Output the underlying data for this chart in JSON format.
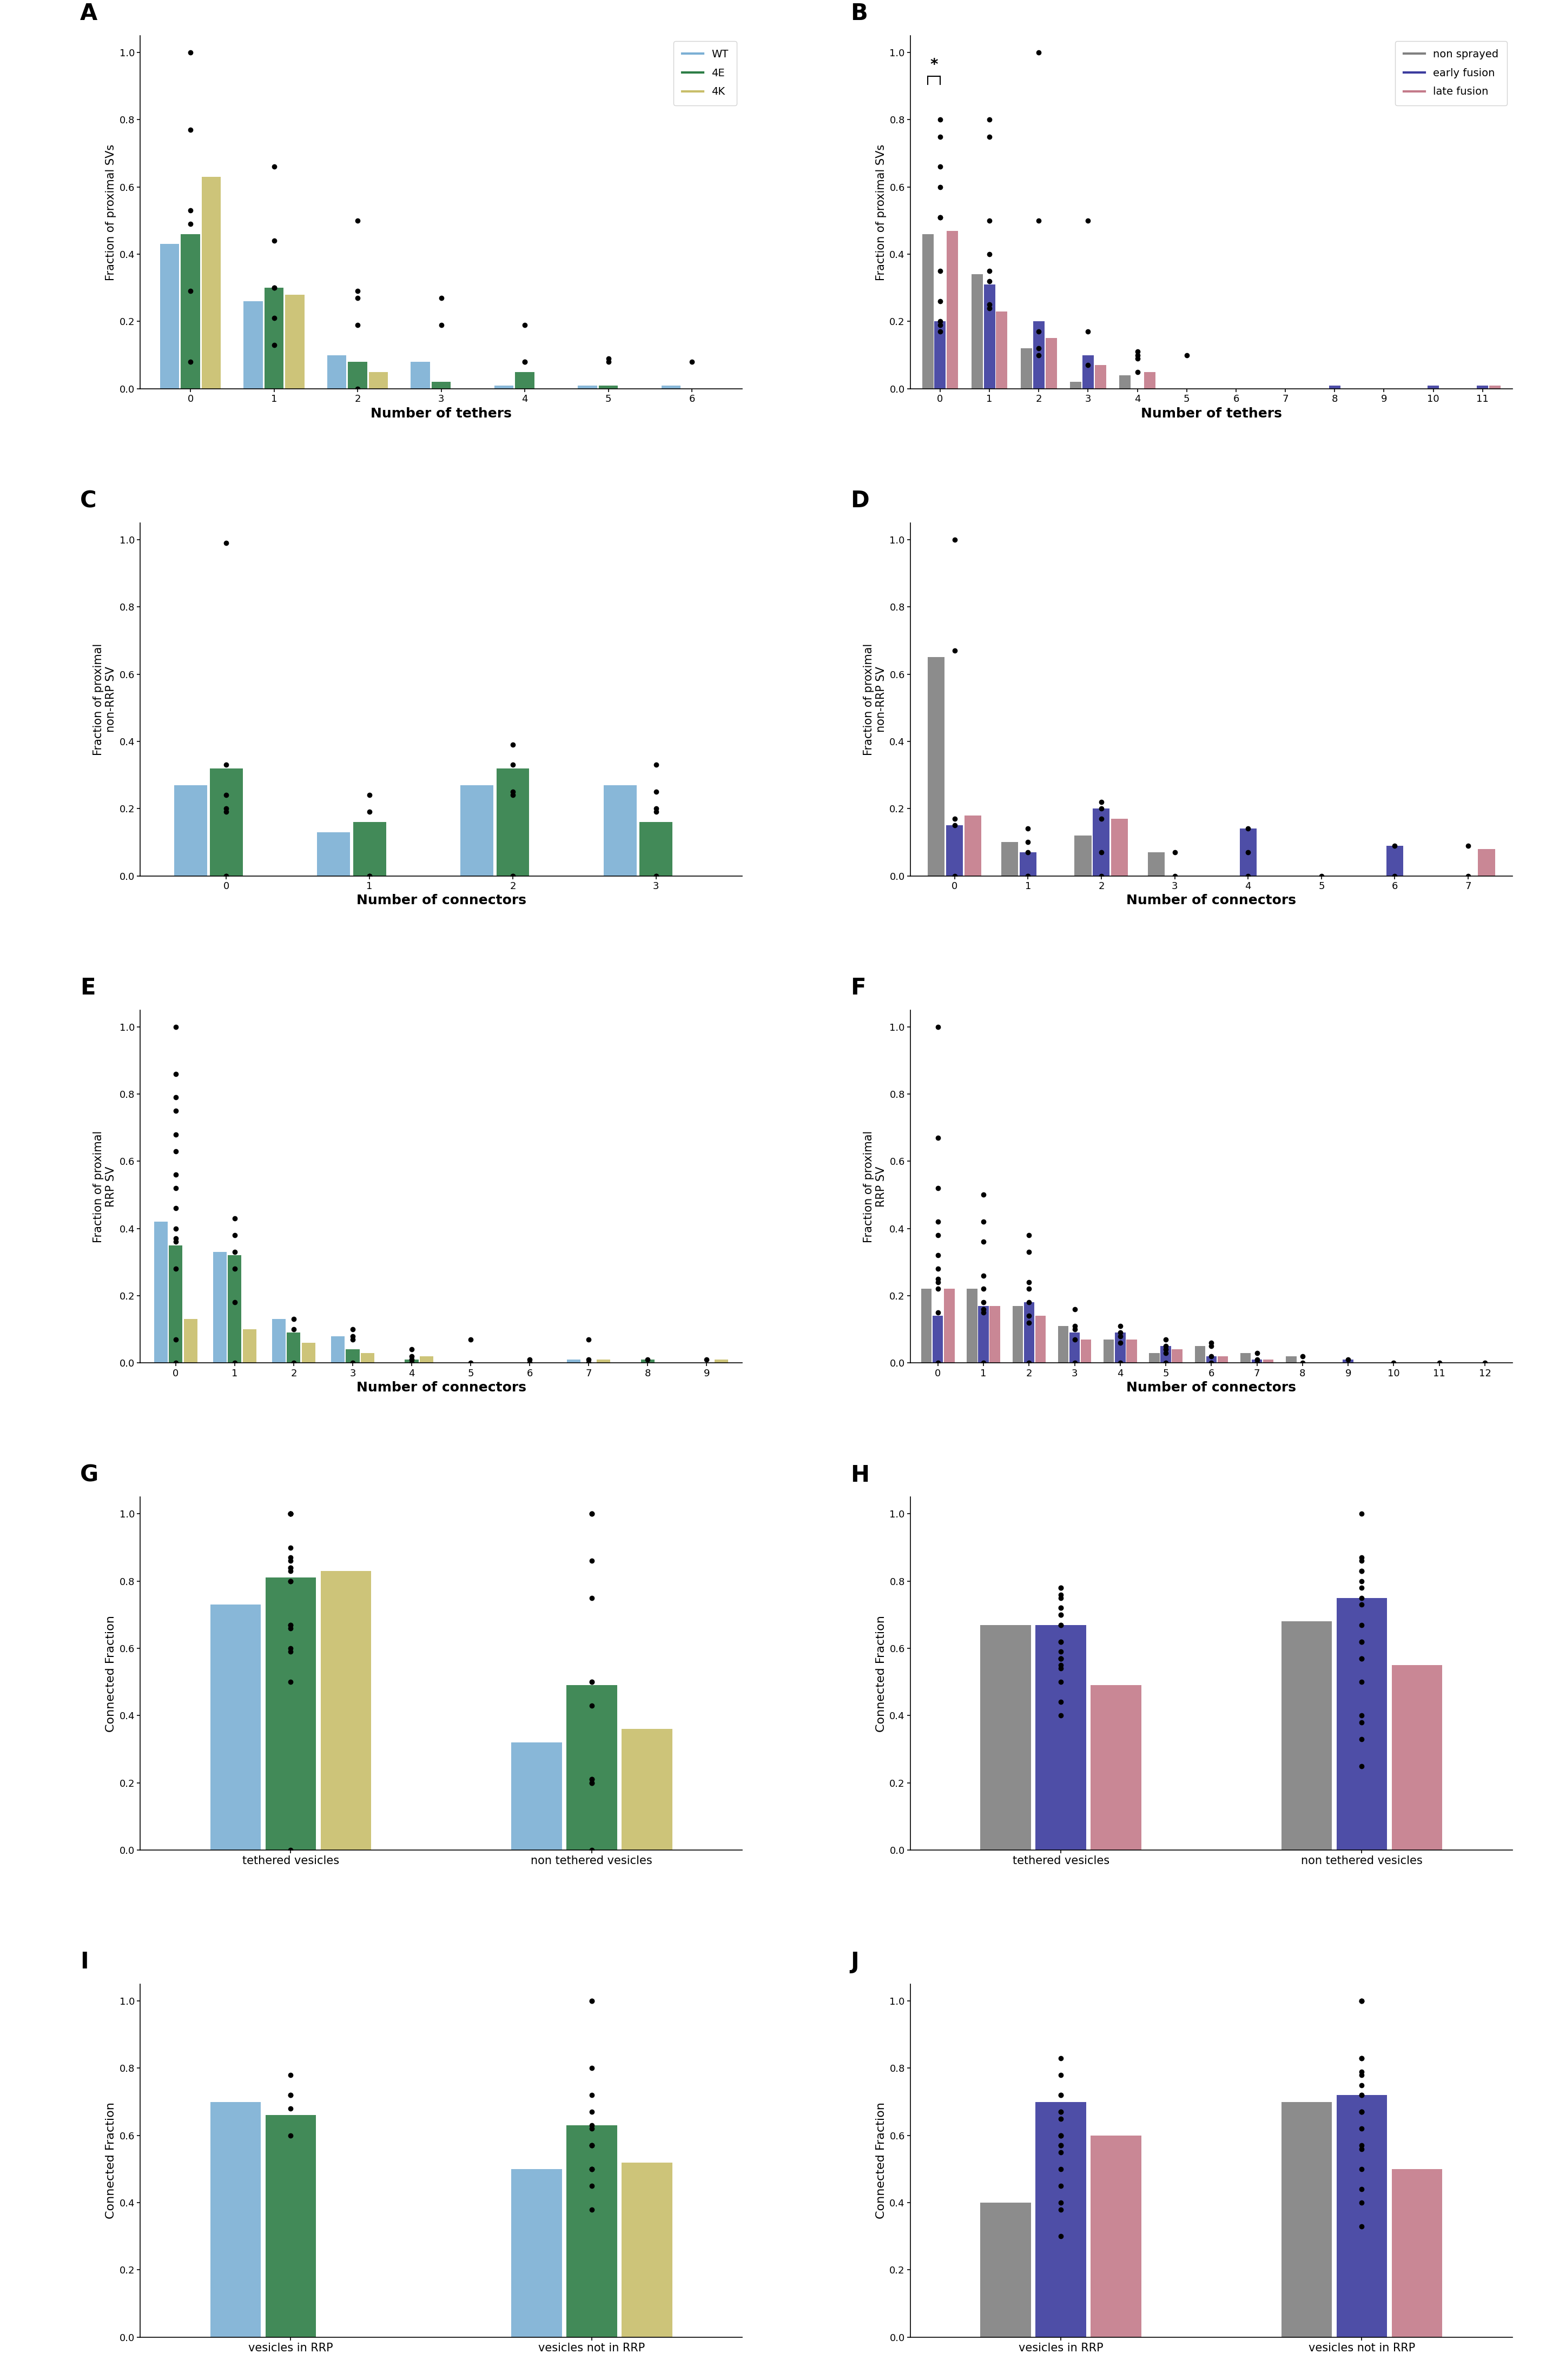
{
  "panel_A": {
    "label": "A",
    "xlabel": "Number of tethers",
    "ylabel": "Fraction of proximal SVs",
    "categories": [
      0,
      1,
      2,
      3,
      4,
      5,
      6
    ],
    "bar_data": {
      "WT": [
        0.43,
        0.26,
        0.1,
        0.08,
        0.01,
        0.01,
        0.01
      ],
      "4E": [
        0.46,
        0.3,
        0.08,
        0.02,
        0.05,
        0.01,
        0.0
      ],
      "4K": [
        0.63,
        0.28,
        0.05,
        0.0,
        0.0,
        0.0,
        0.0
      ]
    },
    "scatter_data": {
      "0": [
        0.08,
        0.29,
        0.49,
        0.53,
        0.77,
        1.0
      ],
      "1": [
        0.13,
        0.21,
        0.3,
        0.3,
        0.44,
        0.66
      ],
      "2": [
        0.0,
        0.19,
        0.27,
        0.29,
        0.5
      ],
      "3": [
        0.19,
        0.27
      ],
      "4": [
        0.08,
        0.08,
        0.19
      ],
      "5": [
        0.08,
        0.09
      ],
      "6": [
        0.08
      ]
    },
    "colors": {
      "WT": "#7bafd4",
      "4E": "#2d7d46",
      "4K": "#c8be6a"
    },
    "legend_keys": [
      "WT",
      "4E",
      "4K"
    ],
    "ylim": [
      0,
      1.05
    ],
    "show_legend": true
  },
  "panel_B": {
    "label": "B",
    "xlabel": "Number of tethers",
    "ylabel": "Fraction of proximal SVs",
    "categories": [
      0,
      1,
      2,
      3,
      4,
      5,
      6,
      7,
      8,
      9,
      10,
      11
    ],
    "bar_data": {
      "non sprayed": [
        0.46,
        0.34,
        0.12,
        0.02,
        0.04,
        0.0,
        0.0,
        0.0,
        0.0,
        0.0,
        0.0,
        0.0
      ],
      "early fusion": [
        0.2,
        0.31,
        0.2,
        0.1,
        0.0,
        0.0,
        0.0,
        0.0,
        0.01,
        0.0,
        0.01,
        0.01
      ],
      "late fusion": [
        0.47,
        0.23,
        0.15,
        0.07,
        0.05,
        0.0,
        0.0,
        0.0,
        0.0,
        0.0,
        0.0,
        0.01
      ]
    },
    "scatter_data": {
      "0": [
        0.17,
        0.19,
        0.2,
        0.26,
        0.35,
        0.51,
        0.51,
        0.6,
        0.66,
        0.75,
        0.8
      ],
      "1": [
        0.24,
        0.25,
        0.32,
        0.35,
        0.4,
        0.5,
        0.75,
        0.8
      ],
      "2": [
        0.1,
        0.12,
        0.17,
        0.5,
        1.0
      ],
      "3": [
        0.07,
        0.17,
        0.5
      ],
      "4": [
        0.05,
        0.09,
        0.1,
        0.11
      ],
      "5": [
        0.1
      ],
      "7": [],
      "8": [],
      "9": [],
      "10": [],
      "11": []
    },
    "colors": {
      "non sprayed": "#808080",
      "early fusion": "#3b3b9e",
      "late fusion": "#c47a8a"
    },
    "legend_keys": [
      "non sprayed",
      "early fusion",
      "late fusion"
    ],
    "significance": true,
    "ylim": [
      0,
      1.05
    ],
    "show_legend": true
  },
  "panel_C": {
    "label": "C",
    "xlabel": "Number of connectors",
    "ylabel": "Fraction of proximal\nnon-RRP SV",
    "categories": [
      0,
      1,
      2,
      3
    ],
    "bar_data": {
      "WT": [
        0.27,
        0.13,
        0.27,
        0.27
      ],
      "4E": [
        0.32,
        0.16,
        0.32,
        0.16
      ],
      "4K": [
        0.0,
        0.0,
        0.0,
        0.0
      ]
    },
    "scatter_data": {
      "0": [
        0.0,
        0.0,
        0.19,
        0.2,
        0.24,
        0.33,
        0.99
      ],
      "1": [
        0.0,
        0.0,
        0.0,
        0.19,
        0.24
      ],
      "2": [
        0.0,
        0.0,
        0.24,
        0.25,
        0.33,
        0.39
      ],
      "3": [
        0.0,
        0.0,
        0.19,
        0.2,
        0.25,
        0.33
      ]
    },
    "colors": {
      "WT": "#7bafd4",
      "4E": "#2d7d46",
      "4K": "#c8be6a"
    },
    "legend_keys": [
      "WT",
      "4E",
      "4K"
    ],
    "ylim": [
      0,
      1.05
    ],
    "show_legend": false
  },
  "panel_D": {
    "label": "D",
    "xlabel": "Number of connectors",
    "ylabel": "Fraction of proximal\nnon-RRP SV",
    "categories": [
      0,
      1,
      2,
      3,
      4,
      5,
      6,
      7
    ],
    "bar_data": {
      "non sprayed": [
        0.65,
        0.1,
        0.12,
        0.07,
        0.0,
        0.0,
        0.0,
        0.0
      ],
      "early fusion": [
        0.15,
        0.07,
        0.2,
        0.0,
        0.14,
        0.0,
        0.09,
        0.0
      ],
      "late fusion": [
        0.18,
        0.0,
        0.17,
        0.0,
        0.0,
        0.0,
        0.0,
        0.08
      ]
    },
    "scatter_data": {
      "0": [
        0.0,
        0.15,
        0.17,
        0.67,
        1.0
      ],
      "1": [
        0.0,
        0.0,
        0.07,
        0.1,
        0.14
      ],
      "2": [
        0.0,
        0.07,
        0.17,
        0.2,
        0.22
      ],
      "3": [
        0.0,
        0.07
      ],
      "4": [
        0.0,
        0.07,
        0.14
      ],
      "5": [
        0.0
      ],
      "6": [
        0.0,
        0.09
      ],
      "7": [
        0.0,
        0.09
      ]
    },
    "colors": {
      "non sprayed": "#808080",
      "early fusion": "#3b3b9e",
      "late fusion": "#c47a8a"
    },
    "legend_keys": [
      "non sprayed",
      "early fusion",
      "late fusion"
    ],
    "ylim": [
      0,
      1.05
    ],
    "show_legend": false
  },
  "panel_E": {
    "label": "E",
    "xlabel": "Number of connectors",
    "ylabel": "Fraction of proximal\nRRP SV",
    "categories": [
      0,
      1,
      2,
      3,
      4,
      5,
      6,
      7,
      8,
      9
    ],
    "bar_data": {
      "WT": [
        0.42,
        0.33,
        0.13,
        0.08,
        0.0,
        0.0,
        0.0,
        0.01,
        0.0,
        0.0
      ],
      "4E": [
        0.35,
        0.32,
        0.09,
        0.04,
        0.01,
        0.0,
        0.0,
        0.0,
        0.01,
        0.0
      ],
      "4K": [
        0.13,
        0.1,
        0.06,
        0.03,
        0.02,
        0.0,
        0.0,
        0.01,
        0.0,
        0.01
      ]
    },
    "scatter_data": {
      "0": [
        0.0,
        0.07,
        0.28,
        0.36,
        0.37,
        0.4,
        0.46,
        0.52,
        0.56,
        0.63,
        0.68,
        0.75,
        0.79,
        0.86,
        1.0
      ],
      "1": [
        0.0,
        0.18,
        0.28,
        0.33,
        0.38,
        0.43
      ],
      "2": [
        0.0,
        0.1,
        0.13
      ],
      "3": [
        0.0,
        0.07,
        0.08,
        0.1
      ],
      "4": [
        0.0,
        0.01,
        0.02,
        0.04
      ],
      "5": [
        0.0,
        0.07
      ],
      "6": [
        0.0,
        0.01
      ],
      "7": [
        0.0,
        0.01,
        0.07
      ],
      "8": [
        0.01
      ],
      "9": [
        0.01
      ]
    },
    "colors": {
      "WT": "#7bafd4",
      "4E": "#2d7d46",
      "4K": "#c8be6a"
    },
    "legend_keys": [
      "WT",
      "4E",
      "4K"
    ],
    "ylim": [
      0,
      1.05
    ],
    "show_legend": false
  },
  "panel_F": {
    "label": "F",
    "xlabel": "Number of connectors",
    "ylabel": "Fraction of proximal\nRRP SV",
    "categories": [
      0,
      1,
      2,
      3,
      4,
      5,
      6,
      7,
      8,
      9,
      10,
      11,
      12
    ],
    "bar_data": {
      "non sprayed": [
        0.22,
        0.22,
        0.17,
        0.11,
        0.07,
        0.03,
        0.05,
        0.03,
        0.02,
        0.0,
        0.0,
        0.0,
        0.0
      ],
      "early fusion": [
        0.14,
        0.17,
        0.18,
        0.09,
        0.09,
        0.05,
        0.02,
        0.01,
        0.0,
        0.01,
        0.0,
        0.0,
        0.0
      ],
      "late fusion": [
        0.22,
        0.17,
        0.14,
        0.07,
        0.07,
        0.04,
        0.02,
        0.01,
        0.0,
        0.0,
        0.0,
        0.0,
        0.0
      ]
    },
    "scatter_data": {
      "0": [
        0.0,
        0.15,
        0.22,
        0.24,
        0.25,
        0.28,
        0.32,
        0.38,
        0.42,
        0.52,
        0.67,
        1.0
      ],
      "1": [
        0.0,
        0.15,
        0.16,
        0.18,
        0.22,
        0.26,
        0.36,
        0.42,
        0.5
      ],
      "2": [
        0.0,
        0.12,
        0.14,
        0.18,
        0.22,
        0.24,
        0.33,
        0.38
      ],
      "3": [
        0.0,
        0.07,
        0.1,
        0.11,
        0.16
      ],
      "4": [
        0.0,
        0.06,
        0.08,
        0.09,
        0.11
      ],
      "5": [
        0.0,
        0.03,
        0.04,
        0.05,
        0.07
      ],
      "6": [
        0.0,
        0.02,
        0.05,
        0.06
      ],
      "7": [
        0.0,
        0.01,
        0.03
      ],
      "8": [
        0.0,
        0.02
      ],
      "9": [
        0.01
      ],
      "10": [
        0.0
      ],
      "11": [
        0.0
      ],
      "12": [
        0.0
      ]
    },
    "colors": {
      "non sprayed": "#808080",
      "early fusion": "#3b3b9e",
      "late fusion": "#c47a8a"
    },
    "legend_keys": [
      "non sprayed",
      "early fusion",
      "late fusion"
    ],
    "ylim": [
      0,
      1.05
    ],
    "show_legend": false
  },
  "panel_G": {
    "label": "G",
    "ylabel": "Connected Fraction",
    "groups": [
      "tethered vesicles",
      "non tethered vesicles"
    ],
    "bar_data": {
      "WT": [
        0.73,
        0.32
      ],
      "4E": [
        0.81,
        0.49
      ],
      "4K": [
        0.83,
        0.36
      ]
    },
    "scatter_data": {
      "tethered_WT": [
        0.5,
        0.59,
        0.6,
        0.66,
        0.67,
        0.9
      ],
      "tethered_4E": [
        0.67,
        0.8,
        0.84,
        0.86,
        0.87,
        1.0,
        1.0,
        1.0
      ],
      "tethered_4K": [
        0.0,
        0.8,
        0.83,
        0.84,
        1.0,
        1.0,
        1.0
      ],
      "non_tethered_WT": [
        0.2,
        0.2,
        0.43,
        1.0
      ],
      "non_tethered_4E": [
        0.21,
        0.21,
        0.5,
        1.0,
        1.0
      ],
      "non_tethered_4K": [
        0.0,
        0.5,
        0.75,
        0.86
      ]
    },
    "colors": {
      "WT": "#7bafd4",
      "4E": "#2d7d46",
      "4K": "#c8be6a"
    },
    "legend_keys": [
      "WT",
      "4E",
      "4K"
    ],
    "ylim": [
      0,
      1.05
    ],
    "show_legend": false
  },
  "panel_H": {
    "label": "H",
    "ylabel": "Connected Fraction",
    "groups": [
      "tethered vesicles",
      "non tethered vesicles"
    ],
    "bar_data": {
      "non sprayed": [
        0.67,
        0.68
      ],
      "early fusion": [
        0.67,
        0.75
      ],
      "late fusion": [
        0.49,
        0.55
      ]
    },
    "scatter_data": {
      "tethered_ns": [
        0.57,
        0.62,
        0.67,
        0.7,
        0.72,
        0.75,
        0.78
      ],
      "tethered_ef": [
        0.57,
        0.62,
        0.67,
        0.7,
        0.72,
        0.76,
        0.78
      ],
      "tethered_lf": [
        0.4,
        0.44,
        0.5,
        0.54,
        0.55,
        0.57,
        0.59
      ],
      "non_tethered_ns": [
        0.57,
        0.62,
        0.67,
        0.73,
        0.78,
        0.83
      ],
      "non_tethered_ef": [
        0.57,
        0.62,
        0.75,
        0.8,
        0.83,
        0.87,
        1.0
      ],
      "non_tethered_lf": [
        0.25,
        0.33,
        0.38,
        0.4,
        0.5,
        0.86
      ]
    },
    "colors": {
      "non sprayed": "#808080",
      "early fusion": "#3b3b9e",
      "late fusion": "#c47a8a"
    },
    "legend_keys": [
      "non sprayed",
      "early fusion",
      "late fusion"
    ],
    "ylim": [
      0,
      1.05
    ],
    "show_legend": false
  },
  "panel_I": {
    "label": "I",
    "ylabel": "Connected Fraction",
    "groups": [
      "vesicles in RRP",
      "vesicles not in RRP"
    ],
    "bar_data": {
      "WT": [
        0.7,
        0.5
      ],
      "4E": [
        0.66,
        0.63
      ],
      "4K": [
        0.0,
        0.52
      ]
    },
    "scatter_data": {
      "RRP_WT": [
        0.72,
        0.78
      ],
      "RRP_4E": [
        0.6,
        0.68,
        0.72
      ],
      "RRP_4K": [],
      "nonRRP_WT": [
        0.38,
        0.45,
        0.5,
        0.57,
        0.62
      ],
      "nonRRP_4E": [
        0.5,
        0.57,
        0.63,
        0.67,
        0.72,
        0.8
      ],
      "nonRRP_4K": [
        0.5,
        0.57,
        1.0,
        1.0
      ]
    },
    "colors": {
      "WT": "#7bafd4",
      "4E": "#2d7d46",
      "4K": "#c8be6a"
    },
    "legend_keys": [
      "WT",
      "4E",
      "4K"
    ],
    "ylim": [
      0,
      1.05
    ],
    "show_legend": false
  },
  "panel_J": {
    "label": "J",
    "ylabel": "Connected Fraction",
    "groups": [
      "vesicles in RRP",
      "vesicles not in RRP"
    ],
    "bar_data": {
      "non sprayed": [
        0.4,
        0.7
      ],
      "early fusion": [
        0.7,
        0.72
      ],
      "late fusion": [
        0.6,
        0.5
      ]
    },
    "scatter_data": {
      "RRP_ns": [
        0.3,
        0.38,
        0.4,
        0.45,
        0.55,
        0.6,
        0.65
      ],
      "RRP_ef": [
        0.57,
        0.6,
        0.67,
        0.72,
        0.78,
        0.83
      ],
      "RRP_lf": [
        0.5,
        0.57,
        0.6,
        0.67,
        0.72
      ],
      "nonRRP_ns": [
        0.57,
        0.62,
        0.67,
        0.72,
        0.78,
        0.83,
        1.0
      ],
      "nonRRP_ef": [
        0.67,
        0.72,
        0.75,
        0.79,
        0.83,
        1.0,
        1.0
      ],
      "nonRRP_lf": [
        0.33,
        0.4,
        0.44,
        0.5,
        0.56,
        0.67
      ]
    },
    "colors": {
      "non sprayed": "#808080",
      "early fusion": "#3b3b9e",
      "late fusion": "#c47a8a"
    },
    "legend_keys": [
      "non sprayed",
      "early fusion",
      "late fusion"
    ],
    "ylim": [
      0,
      1.05
    ],
    "show_legend": false
  }
}
